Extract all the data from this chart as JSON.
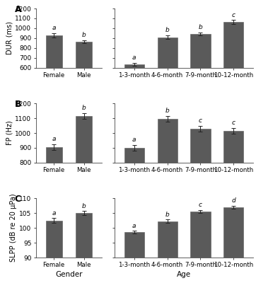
{
  "panel_A_gender": {
    "categories": [
      "Female",
      "Male"
    ],
    "values": [
      930,
      865
    ],
    "errors": [
      20,
      15
    ],
    "letters": [
      "a",
      "b"
    ]
  },
  "panel_A_age": {
    "categories": [
      "1-3-month",
      "4-6-month",
      "7-9-month",
      "10-12-month"
    ],
    "values": [
      635,
      910,
      945,
      1065
    ],
    "errors": [
      15,
      20,
      15,
      20
    ],
    "letters": [
      "a",
      "b",
      "b",
      "c"
    ]
  },
  "panel_B_gender": {
    "categories": [
      "Female",
      "Male"
    ],
    "values": [
      905,
      1115
    ],
    "errors": [
      20,
      20
    ],
    "letters": [
      "a",
      "b"
    ]
  },
  "panel_B_age": {
    "categories": [
      "1-3-month",
      "4-6-month",
      "7-9-month",
      "10-12-month"
    ],
    "values": [
      900,
      1095,
      1030,
      1015
    ],
    "errors": [
      20,
      20,
      20,
      20
    ],
    "letters": [
      "a",
      "b",
      "c",
      "c"
    ]
  },
  "panel_C_gender": {
    "categories": [
      "Female",
      "Male"
    ],
    "values": [
      102.5,
      105.0
    ],
    "errors": [
      0.8,
      0.7
    ],
    "letters": [
      "a",
      "b"
    ]
  },
  "panel_C_age": {
    "categories": [
      "1-3-month",
      "4-6-month",
      "7-9-month",
      "10-12-month"
    ],
    "values": [
      98.5,
      102.2,
      105.5,
      107.0
    ],
    "errors": [
      0.5,
      0.6,
      0.5,
      0.5
    ],
    "letters": [
      "a",
      "b",
      "c",
      "d"
    ]
  },
  "panel_A_ylim": [
    600,
    1200
  ],
  "panel_A_yticks": [
    600,
    700,
    800,
    900,
    1000,
    1100,
    1200
  ],
  "panel_B_ylim": [
    800,
    1200
  ],
  "panel_B_yticks": [
    800,
    900,
    1000,
    1100,
    1200
  ],
  "panel_C_ylim": [
    90,
    110
  ],
  "panel_C_yticks": [
    90,
    95,
    100,
    105,
    110
  ],
  "ylabel_A": "DUR (ms)",
  "ylabel_B": "FP (Hz)",
  "ylabel_C": "SLPP (dB re 20 µPa)",
  "xlabel_gender": "Gender",
  "xlabel_age": "Age",
  "bar_color": "#5a5a5a",
  "bar_edge_color": "#5a5a5a",
  "bg_color": "#ffffff",
  "font_size": 6.5,
  "label_font_size": 7,
  "letter_font_size": 6.5
}
